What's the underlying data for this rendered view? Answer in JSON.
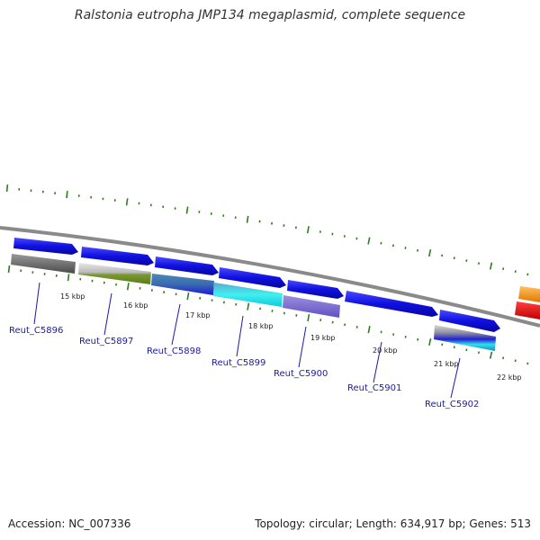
{
  "title": "Ralstonia eutropha JMP134 megaplasmid, complete sequence",
  "accession": "Accession: NC_007336",
  "summary": "Topology: circular; Length: 634,917 bp; Genes: 513",
  "colors": {
    "backbone": "#888888",
    "tick": "#2e7d1e",
    "gene_label": "#1a1aa8",
    "cds": "#1010e0"
  },
  "scale_labels": [
    "15 kbp",
    "16 kbp",
    "17 kbp",
    "18 kbp",
    "19 kbp",
    "20 kbp",
    "21 kbp",
    "22 kbp"
  ],
  "genes": [
    {
      "label": "Reut_C5896"
    },
    {
      "label": "Reut_C5897"
    },
    {
      "label": "Reut_C5898"
    },
    {
      "label": "Reut_C5899"
    },
    {
      "label": "Reut_C5900"
    },
    {
      "label": "Reut_C5901"
    },
    {
      "label": "Reut_C5902"
    }
  ]
}
